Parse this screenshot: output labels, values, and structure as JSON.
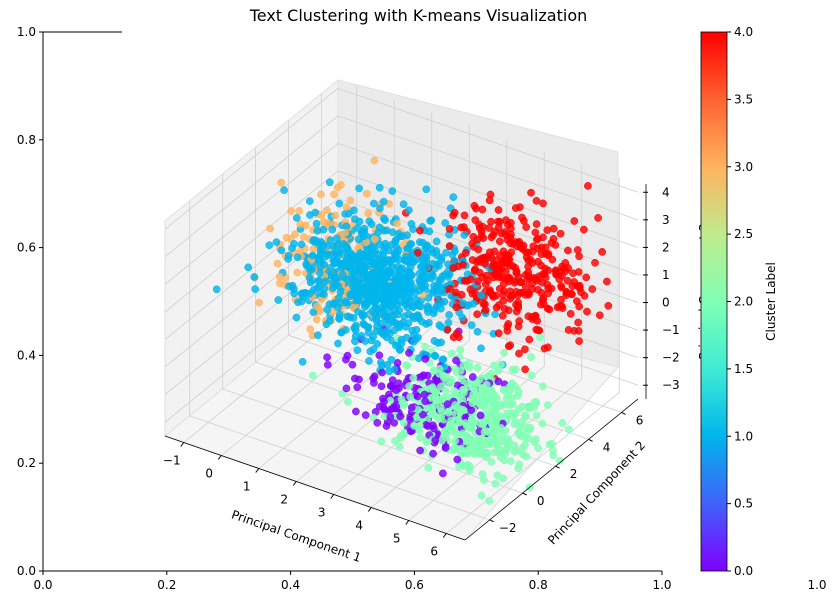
{
  "chart_data": {
    "type": "scatter",
    "subtype": "3d",
    "title": "Text Clustering with K-means Visualization",
    "xlabel": "Principal Component 1",
    "ylabel": "Principal Component 2",
    "zlabel": "Principal Component 3",
    "xlim": [
      -1.5,
      6.5
    ],
    "ylim": [
      -3.5,
      7
    ],
    "zlim": [
      -3.5,
      4.3
    ],
    "x_ticks": [
      "−1",
      "0",
      "1",
      "2",
      "3",
      "4",
      "5",
      "6"
    ],
    "y_ticks": [
      "−2",
      "0",
      "2",
      "4",
      "6"
    ],
    "z_ticks": [
      "−3",
      "−2",
      "−1",
      "0",
      "1",
      "2",
      "3",
      "4"
    ],
    "grid": true,
    "colormap": "rainbow",
    "colorbar": {
      "label": "Cluster Label",
      "range": [
        0.0,
        4.0
      ],
      "ticks": [
        "0.0",
        "0.5",
        "1.0",
        "1.5",
        "2.0",
        "2.5",
        "3.0",
        "3.5",
        "4.0"
      ]
    },
    "clusters": [
      {
        "label": 0,
        "color": "#8000ff",
        "center": [
          3.5,
          1.2,
          -2.2
        ],
        "spread": [
          0.9,
          1.1,
          0.6
        ],
        "approx_points": 180
      },
      {
        "label": 1,
        "color": "#00b4ec",
        "center": [
          1.4,
          3.0,
          0.4
        ],
        "spread": [
          1.0,
          1.2,
          0.9
        ],
        "approx_points": 800
      },
      {
        "label": 2,
        "color": "#80ffb4",
        "center": [
          4.4,
          1.4,
          -2.4
        ],
        "spread": [
          0.9,
          1.0,
          0.8
        ],
        "approx_points": 500
      },
      {
        "label": 3,
        "color": "#ffb360",
        "center": [
          0.0,
          3.5,
          0.2
        ],
        "spread": [
          0.8,
          1.2,
          0.9
        ],
        "approx_points": 180
      },
      {
        "label": 4,
        "color": "#ff0000",
        "center": [
          4.3,
          4.6,
          1.2
        ],
        "spread": [
          0.9,
          1.0,
          1.0
        ],
        "approx_points": 350
      }
    ],
    "background_axes": {
      "x_ticks": [
        "0.0",
        "0.2",
        "0.4",
        "0.6",
        "0.8",
        "1.0"
      ],
      "y_ticks": [
        "0.0",
        "0.2",
        "0.4",
        "0.6",
        "0.8",
        "1.0"
      ],
      "xlim": [
        0,
        1
      ],
      "ylim": [
        0,
        1
      ]
    }
  }
}
